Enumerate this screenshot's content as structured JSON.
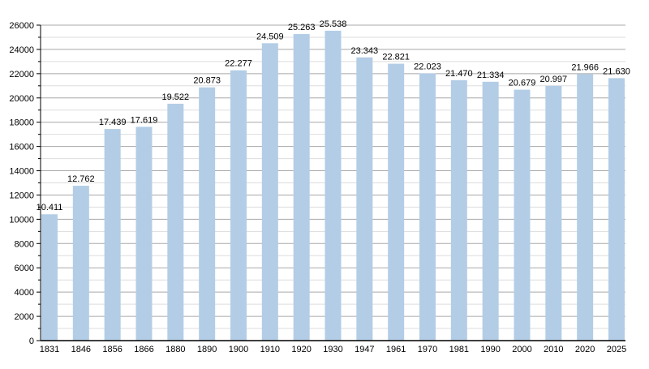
{
  "chart_data": {
    "type": "bar",
    "categories": [
      "1831",
      "1846",
      "1856",
      "1866",
      "1880",
      "1890",
      "1900",
      "1910",
      "1920",
      "1930",
      "1947",
      "1961",
      "1970",
      "1981",
      "1990",
      "2000",
      "2010",
      "2020",
      "2025"
    ],
    "values": [
      10411,
      12762,
      17439,
      17619,
      19522,
      20873,
      22277,
      24509,
      25263,
      25538,
      23343,
      22821,
      22023,
      21470,
      21334,
      20679,
      20997,
      21966,
      21630
    ],
    "data_labels": [
      "10.411",
      "12.762",
      "17.439",
      "17.619",
      "19.522",
      "20.873",
      "22.277",
      "24.509",
      "25.263",
      "25.538",
      "23.343",
      "22.821",
      "22.023",
      "21.470",
      "21.334",
      "20.679",
      "20.997",
      "21.966",
      "21.630"
    ],
    "yticks": [
      0,
      2000,
      4000,
      6000,
      8000,
      10000,
      12000,
      14000,
      16000,
      18000,
      20000,
      22000,
      24000,
      26000
    ],
    "ylim": [
      0,
      26000
    ],
    "grid": true,
    "title": "",
    "xlabel": "",
    "ylabel": "",
    "colors": {
      "bar": "#b3cde6",
      "major_grid": "#a8a8a8",
      "minor_grid": "#dddddd"
    }
  }
}
